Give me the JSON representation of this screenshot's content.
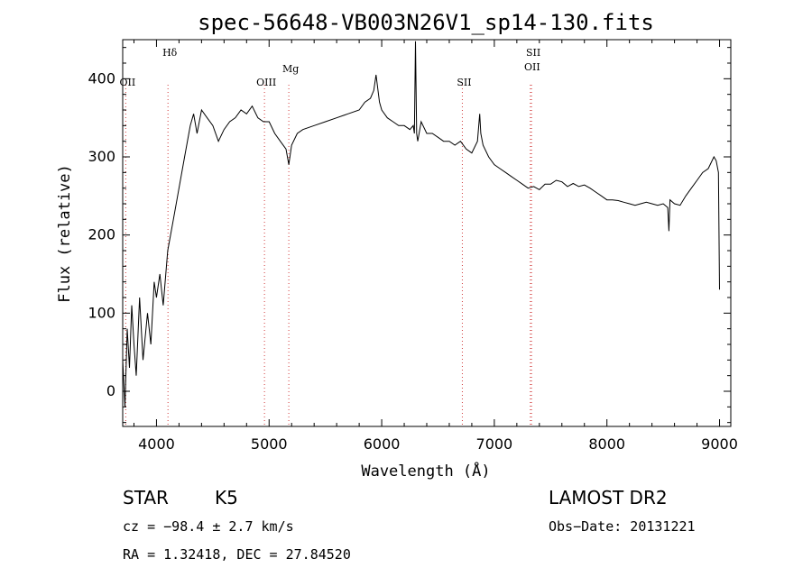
{
  "chart_data": {
    "type": "line",
    "title": "spec-56648-VB003N26V1_sp14-130.fits",
    "xlabel": "Wavelength (Å)",
    "ylabel": "Flux (relative)",
    "xlim": [
      3700,
      9100
    ],
    "ylim": [
      -45,
      450
    ],
    "xticks": [
      "4000",
      "5000",
      "6000",
      "7000",
      "8000",
      "9000"
    ],
    "yticks": [
      "0",
      "100",
      "200",
      "300",
      "400"
    ],
    "grid": false,
    "series": [
      {
        "x": [
          3700,
          3720,
          3740,
          3760,
          3780,
          3800,
          3820,
          3850,
          3880,
          3920,
          3950,
          3980,
          4000,
          4030,
          4060,
          4100,
          4150,
          4200,
          4250,
          4300,
          4330,
          4360,
          4400,
          4450,
          4500,
          4550,
          4600,
          4650,
          4700,
          4750,
          4800,
          4850,
          4900,
          4950,
          5000,
          5050,
          5100,
          5150,
          5175,
          5200,
          5250,
          5300,
          5400,
          5500,
          5600,
          5700,
          5800,
          5850,
          5900,
          5930,
          5950,
          5980,
          6000,
          6050,
          6100,
          6150,
          6200,
          6250,
          6280,
          6290,
          6300,
          6310,
          6320,
          6350,
          6400,
          6450,
          6500,
          6550,
          6600,
          6650,
          6700,
          6750,
          6800,
          6850,
          6870,
          6880,
          6900,
          6950,
          7000,
          7050,
          7100,
          7150,
          7200,
          7250,
          7300,
          7350,
          7400,
          7450,
          7500,
          7550,
          7600,
          7650,
          7700,
          7750,
          7800,
          7850,
          7900,
          7950,
          8000,
          8050,
          8100,
          8150,
          8200,
          8250,
          8300,
          8350,
          8400,
          8450,
          8500,
          8540,
          8550,
          8560,
          8600,
          8650,
          8700,
          8750,
          8800,
          8850,
          8900,
          8950,
          8970,
          8990,
          9000
        ],
        "y": [
          40,
          -20,
          80,
          30,
          110,
          60,
          20,
          120,
          40,
          100,
          60,
          140,
          120,
          150,
          110,
          180,
          220,
          260,
          300,
          340,
          355,
          330,
          360,
          350,
          340,
          320,
          335,
          345,
          350,
          360,
          355,
          365,
          350,
          345,
          345,
          330,
          320,
          310,
          290,
          315,
          330,
          335,
          340,
          345,
          350,
          355,
          360,
          370,
          375,
          385,
          405,
          370,
          360,
          350,
          345,
          340,
          340,
          335,
          340,
          330,
          448,
          330,
          320,
          345,
          330,
          330,
          325,
          320,
          320,
          315,
          320,
          310,
          305,
          320,
          355,
          330,
          315,
          300,
          290,
          285,
          280,
          275,
          270,
          265,
          260,
          262,
          258,
          265,
          265,
          270,
          268,
          262,
          266,
          262,
          264,
          260,
          255,
          250,
          245,
          245,
          244,
          242,
          240,
          238,
          240,
          242,
          240,
          238,
          240,
          235,
          205,
          245,
          240,
          238,
          250,
          260,
          270,
          280,
          285,
          300,
          295,
          280,
          130
        ],
        "color": "#000000"
      }
    ],
    "lines": [
      {
        "label": "OII",
        "x": 3727
      },
      {
        "label": "Hδ",
        "x": 4102
      },
      {
        "label": "OIII",
        "x": 4959
      },
      {
        "label": "Mg",
        "x": 5175
      },
      {
        "label": "SII",
        "x": 6716
      },
      {
        "label": "OII",
        "x": 7320
      },
      {
        "label": "SII",
        "x": 7330
      }
    ]
  },
  "info": {
    "class": "STAR",
    "subclass": "K5",
    "survey": "LAMOST DR2",
    "cz": "cz = −98.4 ± 2.7 km/s",
    "obs_date": "Obs−Date: 20131221",
    "radec": "RA =    1.32418, DEC =   27.84520"
  }
}
